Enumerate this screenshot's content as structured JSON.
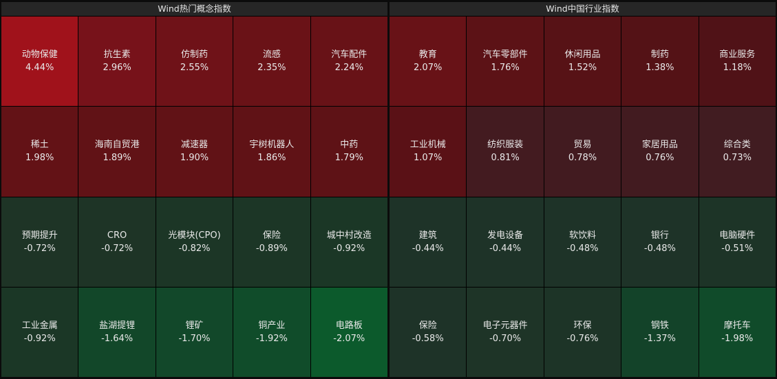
{
  "panels": [
    {
      "title": "Wind热门概念指数",
      "tiles": [
        {
          "name": "动物保健",
          "change": "4.44%",
          "color": "#a0121b"
        },
        {
          "name": "抗生素",
          "change": "2.96%",
          "color": "#77121a"
        },
        {
          "name": "仿制药",
          "change": "2.55%",
          "color": "#6f1218"
        },
        {
          "name": "流感",
          "change": "2.35%",
          "color": "#6a1217"
        },
        {
          "name": "汽车配件",
          "change": "2.24%",
          "color": "#681217"
        },
        {
          "name": "稀土",
          "change": "1.98%",
          "color": "#631216"
        },
        {
          "name": "海南自贸港",
          "change": "1.89%",
          "color": "#611216"
        },
        {
          "name": "减速器",
          "change": "1.90%",
          "color": "#611216"
        },
        {
          "name": "宇树机器人",
          "change": "1.86%",
          "color": "#601216"
        },
        {
          "name": "中药",
          "change": "1.79%",
          "color": "#5e1216"
        },
        {
          "name": "预期提升",
          "change": "-0.72%",
          "color": "#1e3426"
        },
        {
          "name": "CRO",
          "change": "-0.72%",
          "color": "#1e3426"
        },
        {
          "name": "光模块(CPO)",
          "change": "-0.82%",
          "color": "#1c3626"
        },
        {
          "name": "保险",
          "change": "-0.89%",
          "color": "#1c3626"
        },
        {
          "name": "城中村改造",
          "change": "-0.92%",
          "color": "#1b3726"
        },
        {
          "name": "工业金属",
          "change": "-0.92%",
          "color": "#1b3726"
        },
        {
          "name": "盐湖提锂",
          "change": "-1.64%",
          "color": "#124729"
        },
        {
          "name": "锂矿",
          "change": "-1.70%",
          "color": "#12482a"
        },
        {
          "name": "铜产业",
          "change": "-1.92%",
          "color": "#104c2a"
        },
        {
          "name": "电路板",
          "change": "-2.07%",
          "color": "#0c5a2c"
        }
      ]
    },
    {
      "title": "Wind中国行业指数",
      "tiles": [
        {
          "name": "教育",
          "change": "2.07%",
          "color": "#681217"
        },
        {
          "name": "汽车零部件",
          "change": "1.76%",
          "color": "#5c1216"
        },
        {
          "name": "休闲用品",
          "change": "1.52%",
          "color": "#571216"
        },
        {
          "name": "制药",
          "change": "1.38%",
          "color": "#541216"
        },
        {
          "name": "商业服务",
          "change": "1.18%",
          "color": "#501217"
        },
        {
          "name": "工业机械",
          "change": "1.07%",
          "color": "#5a1116"
        },
        {
          "name": "纺织服装",
          "change": "0.81%",
          "color": "#431b20"
        },
        {
          "name": "贸易",
          "change": "0.78%",
          "color": "#421b20"
        },
        {
          "name": "家居用品",
          "change": "0.76%",
          "color": "#421b20"
        },
        {
          "name": "综合类",
          "change": "0.73%",
          "color": "#411c21"
        },
        {
          "name": "建筑",
          "change": "-0.44%",
          "color": "#1e3328"
        },
        {
          "name": "发电设备",
          "change": "-0.44%",
          "color": "#1e3328"
        },
        {
          "name": "软饮料",
          "change": "-0.48%",
          "color": "#1e3328"
        },
        {
          "name": "银行",
          "change": "-0.48%",
          "color": "#1e3328"
        },
        {
          "name": "电脑硬件",
          "change": "-0.51%",
          "color": "#1d3427"
        },
        {
          "name": "保险",
          "change": "-0.58%",
          "color": "#1e3328"
        },
        {
          "name": "电子元器件",
          "change": "-0.70%",
          "color": "#1e3427"
        },
        {
          "name": "环保",
          "change": "-0.76%",
          "color": "#1d3427"
        },
        {
          "name": "钢铁",
          "change": "-1.37%",
          "color": "#134329"
        },
        {
          "name": "摩托车",
          "change": "-1.98%",
          "color": "#104b2a"
        }
      ]
    }
  ]
}
